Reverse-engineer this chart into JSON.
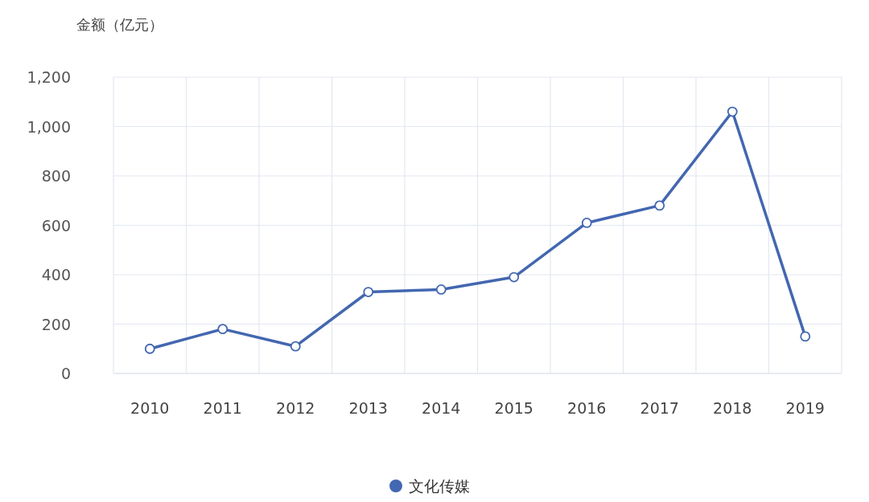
{
  "chart_data": {
    "type": "line",
    "ylabel": "金额（亿元）",
    "categories": [
      "2010",
      "2011",
      "2012",
      "2013",
      "2014",
      "2015",
      "2016",
      "2017",
      "2018",
      "2019"
    ],
    "series": [
      {
        "name": "文化传媒",
        "color": "#4367b0",
        "values": [
          100,
          180,
          110,
          330,
          340,
          390,
          610,
          680,
          1060,
          150
        ]
      }
    ],
    "ylim": [
      0,
      1200
    ],
    "yticks": [
      0,
      200,
      400,
      600,
      800,
      {
        "value": 1000,
        "label": "1,000"
      },
      {
        "value": 1200,
        "label": "1,200"
      }
    ],
    "grid": true,
    "legend": "bottom",
    "marker": "circle",
    "line_style": "solid"
  }
}
